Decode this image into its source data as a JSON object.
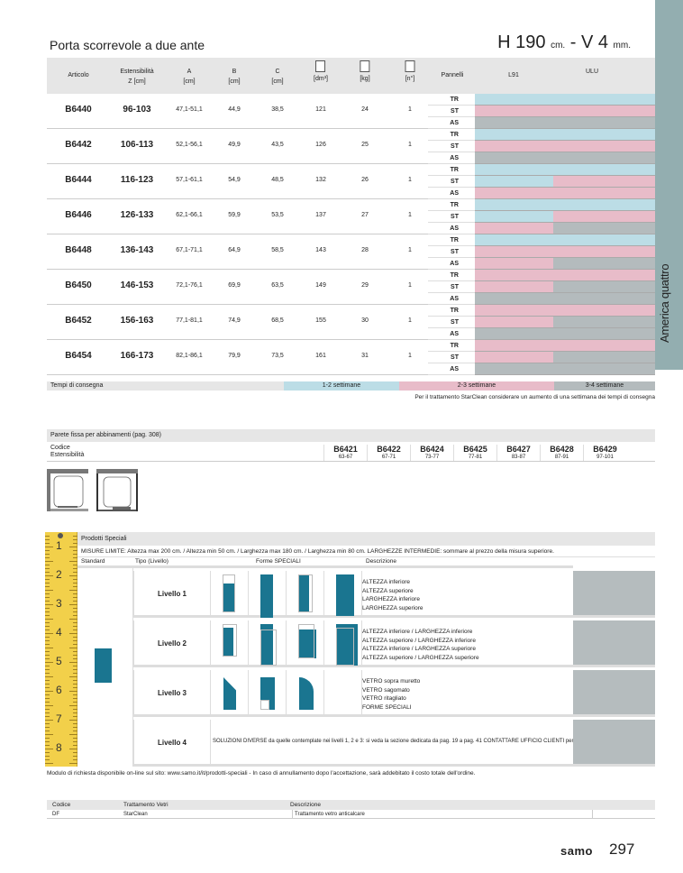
{
  "side_tab": "America quattro",
  "title": "Porta scorrevole a due ante",
  "height_title": {
    "h": "H 190",
    "h_unit": "cm.",
    "sep": " - ",
    "v": "V 4",
    "v_unit": "mm."
  },
  "colors": {
    "blue": "#bcdde6",
    "pink": "#e8bcc9",
    "gray": "#b4bbbd",
    "teal": "#1a7590",
    "ruler": "#f2d04a",
    "side": "#93aeb0"
  },
  "header": {
    "articolo": "Articolo",
    "estens": "Estensibilità",
    "estens_unit": "Z [cm]",
    "a": "A",
    "a_unit": "[cm]",
    "b": "B",
    "b_unit": "[cm]",
    "c": "C",
    "c_unit": "[cm]",
    "vol_unit": "[dm³]",
    "kg_unit": "[kg]",
    "n_unit": "[n°]",
    "pannelli": "Pannelli",
    "l91": "L91",
    "ulu": "ULU"
  },
  "products": [
    {
      "code": "B6440",
      "z": "96-103",
      "a": "47,1-51,1",
      "b": "44,9",
      "c": "38,5",
      "dm": "121",
      "kg": "24",
      "n": "1",
      "panels": [
        [
          "TR",
          "blue",
          "blue"
        ],
        [
          "ST",
          "pink",
          "pink"
        ],
        [
          "AS",
          "gray",
          "gray"
        ]
      ]
    },
    {
      "code": "B6442",
      "z": "106-113",
      "a": "52,1-56,1",
      "b": "49,9",
      "c": "43,5",
      "dm": "126",
      "kg": "25",
      "n": "1",
      "panels": [
        [
          "TR",
          "blue",
          "blue"
        ],
        [
          "ST",
          "pink",
          "pink"
        ],
        [
          "AS",
          "gray",
          "gray"
        ]
      ]
    },
    {
      "code": "B6444",
      "z": "116-123",
      "a": "57,1-61,1",
      "b": "54,9",
      "c": "48,5",
      "dm": "132",
      "kg": "26",
      "n": "1",
      "panels": [
        [
          "TR",
          "blue",
          "blue"
        ],
        [
          "ST",
          "blue",
          "pink"
        ],
        [
          "AS",
          "pink",
          "pink"
        ]
      ]
    },
    {
      "code": "B6446",
      "z": "126-133",
      "a": "62,1-66,1",
      "b": "59,9",
      "c": "53,5",
      "dm": "137",
      "kg": "27",
      "n": "1",
      "panels": [
        [
          "TR",
          "blue",
          "blue"
        ],
        [
          "ST",
          "blue",
          "pink"
        ],
        [
          "AS",
          "pink",
          "gray"
        ]
      ]
    },
    {
      "code": "B6448",
      "z": "136-143",
      "a": "67,1-71,1",
      "b": "64,9",
      "c": "58,5",
      "dm": "143",
      "kg": "28",
      "n": "1",
      "panels": [
        [
          "TR",
          "blue",
          "blue"
        ],
        [
          "ST",
          "pink",
          "pink"
        ],
        [
          "AS",
          "pink",
          "gray"
        ]
      ]
    },
    {
      "code": "B6450",
      "z": "146-153",
      "a": "72,1-76,1",
      "b": "69,9",
      "c": "63,5",
      "dm": "149",
      "kg": "29",
      "n": "1",
      "panels": [
        [
          "TR",
          "pink",
          "pink"
        ],
        [
          "ST",
          "pink",
          "gray"
        ],
        [
          "AS",
          "gray",
          "gray"
        ]
      ]
    },
    {
      "code": "B6452",
      "z": "156-163",
      "a": "77,1-81,1",
      "b": "74,9",
      "c": "68,5",
      "dm": "155",
      "kg": "30",
      "n": "1",
      "panels": [
        [
          "TR",
          "pink",
          "pink"
        ],
        [
          "ST",
          "pink",
          "gray"
        ],
        [
          "AS",
          "gray",
          "gray"
        ]
      ]
    },
    {
      "code": "B6454",
      "z": "166-173",
      "a": "82,1-86,1",
      "b": "79,9",
      "c": "73,5",
      "dm": "161",
      "kg": "31",
      "n": "1",
      "panels": [
        [
          "TR",
          "pink",
          "pink"
        ],
        [
          "ST",
          "pink",
          "gray"
        ],
        [
          "AS",
          "gray",
          "gray"
        ]
      ]
    }
  ],
  "tempi": {
    "label": "Tempi di consegna",
    "t1": "1-2 settimane",
    "t2": "2-3 settimane",
    "t3": "3-4 settimane"
  },
  "starclean_note": "Per il trattamento StarClean considerare un aumento di una settimana dei tempi di consegna",
  "parete": {
    "title": "Parete fissa per abbinamenti (pag. 308)",
    "codice": "Codice",
    "estens": "Estensibilità",
    "items": [
      {
        "code": "B6421",
        "z": "63-67"
      },
      {
        "code": "B6422",
        "z": "67-71"
      },
      {
        "code": "B6424",
        "z": "73-77"
      },
      {
        "code": "B6425",
        "z": "77-81"
      },
      {
        "code": "B6427",
        "z": "83-87"
      },
      {
        "code": "B6428",
        "z": "87-91"
      },
      {
        "code": "B6429",
        "z": "97-101"
      }
    ]
  },
  "speciali": {
    "title": "Prodotti Speciali",
    "misure": "MISURE LIMITE: Altezza max 200 cm. / Altezza min 50 cm. / Larghezza max 180 cm. / Larghezza min 80 cm.     LARGHEZZE INTERMEDIE: sommare al prezzo della misura superiore.",
    "col_standard": "Standard",
    "col_tipo": "Tipo (Livello)",
    "col_forme": "Forme SPECIALI",
    "col_desc": "Descrizione",
    "ruler": [
      "1",
      "2",
      "3",
      "4",
      "5",
      "6",
      "7",
      "8"
    ],
    "levels": [
      {
        "name": "Livello 1",
        "desc": [
          "ALTEZZA inferiore",
          "ALTEZZA superiore",
          "LARGHEZZA inferiore",
          "LARGHEZZA superiore"
        ]
      },
      {
        "name": "Livello 2",
        "desc": [
          "ALTEZZA inferiore / LARGHEZZA inferiore",
          "ALTEZZA superiore / LARGHEZZA inferiore",
          "ALTEZZA inferiore / LARGHEZZA superiore",
          "ALTEZZA superiore / LARGHEZZA superiore"
        ]
      },
      {
        "name": "Livello 3",
        "desc": [
          "VETRO sopra muretto",
          "VETRO sagomato",
          "VETRO ritagliato",
          "FORME SPECIALI"
        ]
      },
      {
        "name": "Livello 4",
        "desc": [
          "SOLUZIONI DIVERSE da quelle contemplate nei livelli 1, 2 e 3: si veda la sezione dedicata da pag. 19 a pag. 41 CONTATTARE UFFICIO CLIENTI per avere la fattibilità e il prezzo"
        ]
      }
    ]
  },
  "modulo_note": "Modulo di richiesta disponibile on-line sul sito: www.samo.it/it/prodotti-speciali - In caso di annullamento dopo l'accettazione, sarà addebitato il costo totale dell'ordine.",
  "trattamento": {
    "col_codice": "Codice",
    "col_tratt": "Trattamento Vetri",
    "col_desc": "Descrizione",
    "rows": [
      {
        "code": "DF",
        "tratt": "StarClean",
        "desc": "Trattamento vetro anticalcare"
      }
    ]
  },
  "footer": {
    "brand": "samo",
    "page": "297"
  }
}
